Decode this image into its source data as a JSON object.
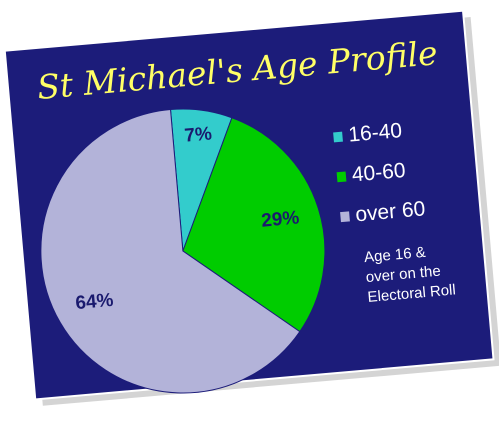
{
  "chart_data": {
    "type": "pie",
    "title": "St Michael's Age Profile",
    "categories": [
      "16-40",
      "40-60",
      "over 60"
    ],
    "values": [
      7,
      29,
      64
    ],
    "value_labels": [
      "7%",
      "29%",
      "64%"
    ],
    "colors": [
      "#33cccc",
      "#00cc00",
      "#b3b3d9"
    ],
    "annotation": [
      "Age 16 &",
      "over on the",
      "Electoral Roll"
    ]
  }
}
